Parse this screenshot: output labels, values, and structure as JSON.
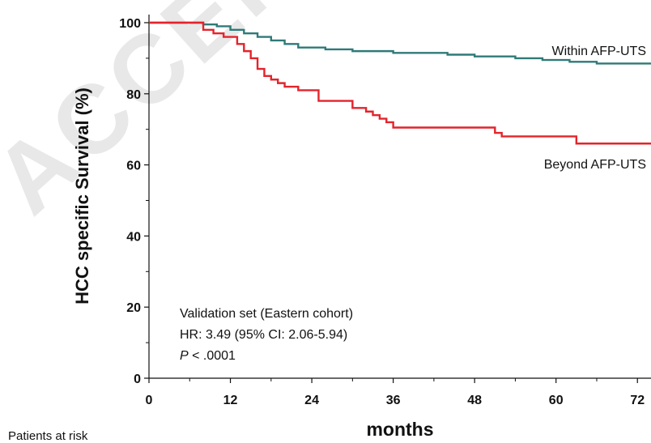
{
  "watermark": "ACCEPTED MANUSCRIPT",
  "footer": {
    "patients_at_risk": "Patients at risk"
  },
  "chart_data": {
    "type": "line",
    "title": "",
    "xlabel": "months",
    "ylabel": "HCC specific Survival (%)",
    "xlim": [
      0,
      74
    ],
    "ylim": [
      0,
      100
    ],
    "xticks": [
      "0",
      "12",
      "24",
      "36",
      "48",
      "60",
      "72"
    ],
    "yticks": [
      "0",
      "20",
      "40",
      "60",
      "80",
      "100"
    ],
    "grid": false,
    "annotation": {
      "line1": "Validation set (Eastern cohort)",
      "line2": "HR: 3.49 (95% CI: 2.06-5.94)",
      "p_symbol": "P",
      "p_value": " < .0001"
    },
    "series": [
      {
        "name": "Within AFP-UTS",
        "color": "#2f7a78",
        "step": true,
        "x": [
          0,
          8,
          10,
          12,
          14,
          16,
          18,
          20,
          22,
          24,
          26,
          30,
          36,
          44,
          48,
          54,
          58,
          62,
          66,
          74
        ],
        "y": [
          100,
          99.5,
          99,
          98,
          97,
          96,
          95,
          94,
          93,
          93,
          92.5,
          92,
          91.5,
          91,
          90.5,
          90,
          89.5,
          89,
          88.5,
          88.5
        ]
      },
      {
        "name": "Beyond AFP-UTS",
        "color": "#e3242b",
        "step": true,
        "x": [
          0,
          8,
          9.5,
          11,
          13,
          14,
          15,
          16,
          17,
          18,
          19,
          20,
          22,
          25,
          30,
          32,
          33,
          34,
          35,
          36,
          51,
          52,
          63,
          74
        ],
        "y": [
          100,
          98,
          97,
          96,
          94,
          92,
          90,
          87,
          85,
          84,
          83,
          82,
          81,
          78,
          76,
          75,
          74,
          73,
          72,
          70.5,
          69,
          68,
          66,
          66
        ]
      }
    ]
  }
}
